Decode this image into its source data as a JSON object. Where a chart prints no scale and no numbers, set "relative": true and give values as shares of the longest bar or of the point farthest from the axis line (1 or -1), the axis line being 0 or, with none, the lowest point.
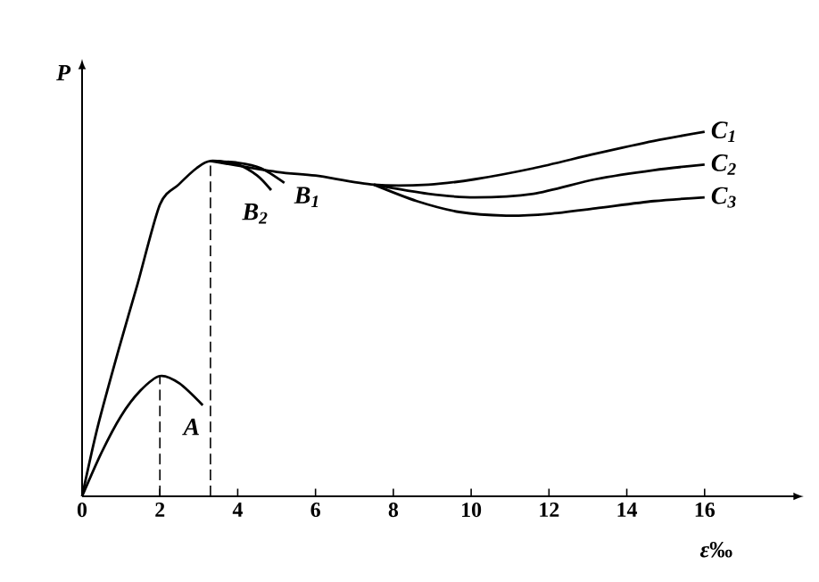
{
  "chart_data": {
    "type": "line",
    "relative": true,
    "xlabel": "*ε*‰",
    "ylabel": "P",
    "xlim": [
      0,
      18
    ],
    "xticks": [
      0,
      2,
      4,
      6,
      8,
      10,
      12,
      14,
      16
    ],
    "series": [
      {
        "name": "A",
        "color": "#000000",
        "x": [
          0,
          0.5,
          1,
          1.5,
          2,
          2.5,
          3.1
        ],
        "values": [
          0,
          0.12,
          0.22,
          0.29,
          0.33,
          0.31,
          0.25
        ]
      },
      {
        "name": "B$_{2}$",
        "color": "#000000",
        "x": [
          0,
          0.4,
          0.96,
          1.42,
          2,
          2.48,
          2.94,
          3.3,
          4.0,
          4.5,
          4.86
        ],
        "values": [
          0,
          0.19,
          0.41,
          0.58,
          0.8,
          0.855,
          0.9,
          0.92,
          0.91,
          0.88,
          0.84
        ]
      },
      {
        "name": "B$_{1}$",
        "color": "#000000",
        "x": [
          3.3,
          4.0,
          4.6,
          5.2
        ],
        "values": [
          0.92,
          0.915,
          0.9,
          0.86
        ]
      },
      {
        "name": "C$_{1}$",
        "color": "#000000",
        "x": [
          3.3,
          5,
          6,
          7.5,
          8.9,
          10.1,
          11.6,
          13.2,
          14.7,
          16
        ],
        "values": [
          0.92,
          0.89,
          0.88,
          0.855,
          0.855,
          0.87,
          0.9,
          0.94,
          0.975,
          1.0
        ]
      },
      {
        "name": "C$_{2}$",
        "color": "#000000",
        "x": [
          7.5,
          8.9,
          10.1,
          11.6,
          13.2,
          14.7,
          16
        ],
        "values": [
          0.855,
          0.83,
          0.82,
          0.83,
          0.87,
          0.895,
          0.91
        ]
      },
      {
        "name": "C$_{3}$",
        "color": "#000000",
        "x": [
          7.5,
          8.6,
          9.7,
          10.9,
          12,
          13.2,
          14.7,
          16
        ],
        "values": [
          0.855,
          0.81,
          0.78,
          0.77,
          0.775,
          0.79,
          0.81,
          0.82
        ]
      }
    ],
    "ref_lines": [
      {
        "axis": "x",
        "value": 2,
        "line_style": "dashed"
      },
      {
        "axis": "x",
        "value": 3.3,
        "line_style": "dashed"
      }
    ]
  }
}
